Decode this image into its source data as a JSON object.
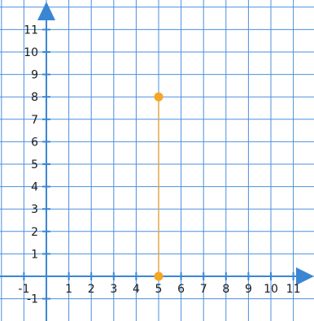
{
  "chart_data": {
    "type": "scatter",
    "title": "",
    "xlabel": "",
    "ylabel": "",
    "xlim": [
      -2,
      12
    ],
    "ylim": [
      -2,
      12
    ],
    "grid": true,
    "x_tick_labels": [
      "-1",
      "1",
      "2",
      "3",
      "4",
      "5",
      "6",
      "7",
      "8",
      "9",
      "10",
      "11"
    ],
    "y_tick_labels": [
      "-1",
      "1",
      "2",
      "3",
      "4",
      "5",
      "6",
      "7",
      "8",
      "9",
      "10",
      "11"
    ],
    "points": [
      {
        "x": 5,
        "y": 8
      },
      {
        "x": 5,
        "y": 0
      }
    ],
    "segments": [
      {
        "from": [
          5,
          8
        ],
        "to": [
          5,
          0
        ]
      }
    ],
    "colors": {
      "grid": "#4a90d9",
      "axis": "#3a86d4",
      "point": "#f5a623",
      "segment": "#e0a84a"
    }
  }
}
